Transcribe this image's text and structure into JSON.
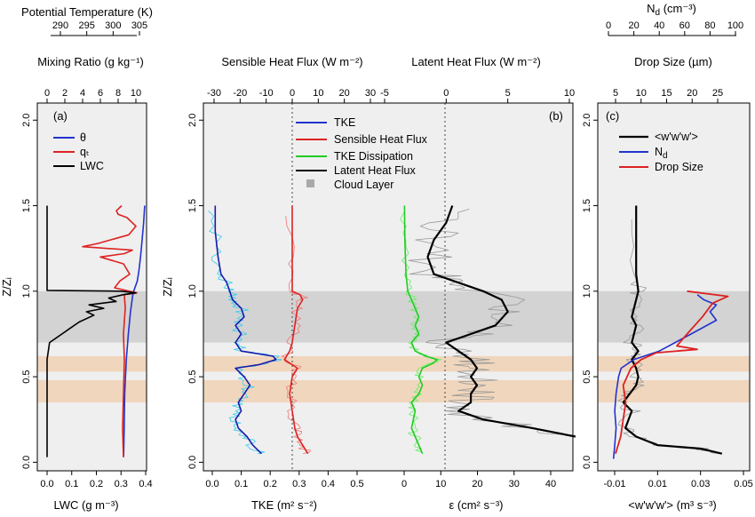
{
  "chart_data": [
    {
      "panel": "(a)",
      "type": "line",
      "top_axes": [
        {
          "title": "Potential Temperature (K)",
          "ticks": [
            "290",
            "295",
            "300",
            "305"
          ],
          "range": [
            289,
            306
          ]
        },
        {
          "title": "Mixing Ratio (g kg⁻¹)",
          "ticks": [
            "0",
            "2",
            "4",
            "6",
            "8",
            "10"
          ],
          "range": [
            0,
            11
          ]
        }
      ],
      "bottom_axis": {
        "title": "LWC (g m⁻³)",
        "ticks": [
          "0.0",
          "0.1",
          "0.2",
          "0.3",
          "0.4"
        ],
        "range": [
          -0.02,
          0.42
        ]
      },
      "y_axis": {
        "title": "Z/Zᵢ",
        "ticks": [
          "0.0",
          "0.5",
          "1.0",
          "1.5",
          "2.0"
        ],
        "range": [
          -0.05,
          2.1
        ]
      },
      "legend": {
        "position": "top-right",
        "entries": [
          "θ",
          "qₜ",
          "LWC"
        ]
      },
      "series": [
        {
          "name": "θ",
          "color": "#2233cc",
          "axis": "theta",
          "points": [
            [
              302.0,
              0.03
            ],
            [
              302.1,
              0.2
            ],
            [
              302.2,
              0.4
            ],
            [
              302.5,
              0.6
            ],
            [
              302.9,
              0.75
            ],
            [
              303.3,
              0.88
            ],
            [
              303.7,
              0.97
            ],
            [
              303.9,
              1.0
            ],
            [
              304.6,
              1.06
            ],
            [
              304.9,
              1.12
            ],
            [
              305.2,
              1.2
            ],
            [
              305.5,
              1.3
            ],
            [
              305.8,
              1.4
            ],
            [
              306.0,
              1.5
            ]
          ]
        },
        {
          "name": "qₜ",
          "color": "#dd2222",
          "axis": "q",
          "points": [
            [
              8.6,
              0.03
            ],
            [
              8.5,
              0.2
            ],
            [
              8.6,
              0.4
            ],
            [
              8.7,
              0.6
            ],
            [
              8.6,
              0.75
            ],
            [
              8.8,
              0.9
            ],
            [
              8.7,
              0.98
            ],
            [
              10.1,
              0.99
            ],
            [
              7.6,
              1.02
            ],
            [
              8.2,
              1.06
            ],
            [
              9.3,
              1.1
            ],
            [
              8.6,
              1.16
            ],
            [
              6.0,
              1.2
            ],
            [
              8.7,
              1.22
            ],
            [
              9.6,
              1.24
            ],
            [
              4.0,
              1.26
            ],
            [
              5.8,
              1.28
            ],
            [
              9.2,
              1.33
            ],
            [
              10.0,
              1.38
            ],
            [
              9.0,
              1.43
            ],
            [
              8.0,
              1.45
            ],
            [
              7.8,
              1.47
            ],
            [
              8.4,
              1.5
            ]
          ]
        },
        {
          "name": "LWC",
          "color": "#000000",
          "axis": "lwc",
          "points": [
            [
              0.0,
              0.03
            ],
            [
              0.0,
              0.6
            ],
            [
              0.01,
              0.7
            ],
            [
              0.06,
              0.75
            ],
            [
              0.09,
              0.78
            ],
            [
              0.13,
              0.82
            ],
            [
              0.19,
              0.86
            ],
            [
              0.16,
              0.88
            ],
            [
              0.23,
              0.9
            ],
            [
              0.17,
              0.92
            ],
            [
              0.28,
              0.94
            ],
            [
              0.25,
              0.96
            ],
            [
              0.31,
              0.98
            ],
            [
              0.36,
              0.99
            ],
            [
              0.3,
              1.0
            ],
            [
              0.0,
              1.005
            ],
            [
              0.0,
              1.5
            ]
          ]
        }
      ]
    },
    {
      "panel": "(b)",
      "type": "line",
      "top_axes": [
        {
          "title": "Sensible Heat Flux (W m⁻²)",
          "ticks": [
            "-30",
            "-20",
            "-10",
            "0",
            "10",
            "20",
            "30"
          ],
          "color": "#dd2222"
        },
        {
          "title": "Latent Heat Flux (W m⁻²)",
          "ticks": [
            "-5",
            "0",
            "5",
            "10"
          ]
        }
      ],
      "bottom_axes": [
        {
          "title": "TKE (m² s⁻²)",
          "ticks": [
            "0.0",
            "0.1",
            "0.2",
            "0.3",
            "0.4",
            "0.5"
          ],
          "color": "#2233cc"
        },
        {
          "title": "ε (cm² s⁻³)",
          "ticks": [
            "0",
            "10",
            "20",
            "30",
            "40"
          ],
          "color": "#22aa22"
        }
      ],
      "y_axis": {
        "title": "Z/Zᵢ",
        "ticks": [
          "0.0",
          "0.5",
          "1.0",
          "1.5",
          "2.0"
        ]
      },
      "legend": {
        "position": "top-center",
        "entries": [
          "TKE",
          "Sensible Heat Flux",
          "TKE Dissipation",
          "Latent Heat Flux",
          "Cloud Layer"
        ]
      },
      "series": [
        {
          "name": "TKE",
          "color": "#1a1aaa",
          "points": [
            [
              0.17,
              0.05
            ],
            [
              0.14,
              0.1
            ],
            [
              0.12,
              0.15
            ],
            [
              0.09,
              0.2
            ],
            [
              0.08,
              0.25
            ],
            [
              0.1,
              0.3
            ],
            [
              0.09,
              0.35
            ],
            [
              0.11,
              0.4
            ],
            [
              0.13,
              0.45
            ],
            [
              0.11,
              0.5
            ],
            [
              0.08,
              0.55
            ],
            [
              0.16,
              0.57
            ],
            [
              0.22,
              0.6
            ],
            [
              0.21,
              0.62
            ],
            [
              0.1,
              0.65
            ],
            [
              0.08,
              0.7
            ],
            [
              0.1,
              0.75
            ],
            [
              0.08,
              0.8
            ],
            [
              0.11,
              0.85
            ],
            [
              0.1,
              0.9
            ],
            [
              0.07,
              0.95
            ],
            [
              0.06,
              1.0
            ],
            [
              0.05,
              1.05
            ],
            [
              0.03,
              1.1
            ],
            [
              0.02,
              1.2
            ],
            [
              0.01,
              1.35
            ],
            [
              0.01,
              1.5
            ]
          ]
        },
        {
          "name": "Sensible Heat Flux",
          "color": "#dd2222",
          "points": [
            [
              6,
              0.05
            ],
            [
              4,
              0.1
            ],
            [
              2,
              0.15
            ],
            [
              1,
              0.2
            ],
            [
              0,
              0.3
            ],
            [
              -1,
              0.4
            ],
            [
              0,
              0.5
            ],
            [
              2,
              0.55
            ],
            [
              -3,
              0.6
            ],
            [
              -1,
              0.65
            ],
            [
              0,
              0.7
            ],
            [
              1,
              0.8
            ],
            [
              2,
              0.9
            ],
            [
              4,
              0.95
            ],
            [
              3,
              0.98
            ],
            [
              0,
              1.0
            ],
            [
              0,
              1.2
            ],
            [
              0,
              1.5
            ]
          ]
        },
        {
          "name": "TKE Dissipation",
          "color": "#22cc22",
          "points": [
            [
              5,
              0.05
            ],
            [
              4,
              0.1
            ],
            [
              3,
              0.15
            ],
            [
              2,
              0.2
            ],
            [
              3,
              0.3
            ],
            [
              2,
              0.35
            ],
            [
              4,
              0.4
            ],
            [
              5,
              0.45
            ],
            [
              4,
              0.5
            ],
            [
              5,
              0.55
            ],
            [
              8,
              0.58
            ],
            [
              9,
              0.6
            ],
            [
              6,
              0.62
            ],
            [
              3,
              0.65
            ],
            [
              2,
              0.7
            ],
            [
              4,
              0.75
            ],
            [
              3,
              0.8
            ],
            [
              4,
              0.85
            ],
            [
              3,
              0.9
            ],
            [
              2,
              0.95
            ],
            [
              1,
              1.0
            ],
            [
              0.5,
              1.1
            ],
            [
              0.2,
              1.3
            ],
            [
              0.1,
              1.5
            ]
          ]
        },
        {
          "name": "Latent Heat Flux",
          "color": "#000000",
          "points": [
            [
              10.5,
              0.15
            ],
            [
              7,
              0.2
            ],
            [
              3,
              0.25
            ],
            [
              1,
              0.3
            ],
            [
              2,
              0.35
            ],
            [
              2,
              0.4
            ],
            [
              2.5,
              0.45
            ],
            [
              2,
              0.5
            ],
            [
              2.5,
              0.55
            ],
            [
              2,
              0.6
            ],
            [
              1,
              0.65
            ],
            [
              0,
              0.7
            ],
            [
              2,
              0.75
            ],
            [
              4,
              0.8
            ],
            [
              5,
              0.88
            ],
            [
              4.5,
              0.95
            ],
            [
              3,
              1.0
            ],
            [
              1,
              1.05
            ],
            [
              -1,
              1.1
            ],
            [
              -1.5,
              1.2
            ],
            [
              -1,
              1.3
            ],
            [
              0,
              1.4
            ],
            [
              0.5,
              1.5
            ]
          ]
        }
      ]
    },
    {
      "panel": "(c)",
      "type": "line",
      "top_axes": [
        {
          "title": "N_d (cm⁻³)",
          "ticks": [
            "0",
            "20",
            "40",
            "60",
            "80",
            "100"
          ]
        },
        {
          "title": "Drop Size (µm)",
          "ticks": [
            "5",
            "10",
            "15",
            "20",
            "25"
          ]
        }
      ],
      "bottom_axis": {
        "title": "<w'w'w'> (m³ s⁻³)",
        "ticks": [
          "-0.01",
          "0.01",
          "0.03",
          "0.05"
        ]
      },
      "y_axis": {
        "ticks": [
          "0.0",
          "0.5",
          "1.0",
          "1.5",
          "2.0"
        ]
      },
      "legend": {
        "position": "top-left",
        "entries": [
          "<w'w'w'>",
          "N_d",
          "Drop Size"
        ]
      },
      "series": [
        {
          "name": "<w'w'w'>",
          "color": "#000000",
          "points": [
            [
              0.04,
              0.05
            ],
            [
              0.03,
              0.08
            ],
            [
              0.01,
              0.1
            ],
            [
              0.0,
              0.15
            ],
            [
              -0.005,
              0.2
            ],
            [
              -0.002,
              0.3
            ],
            [
              -0.006,
              0.35
            ],
            [
              -0.003,
              0.4
            ],
            [
              0.0,
              0.45
            ],
            [
              0.001,
              0.5
            ],
            [
              0.0,
              0.55
            ],
            [
              -0.002,
              0.6
            ],
            [
              0.001,
              0.65
            ],
            [
              -0.002,
              0.7
            ],
            [
              0.0,
              0.8
            ],
            [
              -0.002,
              0.85
            ],
            [
              0.0,
              0.95
            ],
            [
              0.001,
              1.0
            ],
            [
              0.0,
              1.1
            ],
            [
              0.0,
              1.5
            ]
          ]
        },
        {
          "name": "N_d",
          "color": "#2233cc",
          "points": [
            [
              4,
              0.02
            ],
            [
              5,
              0.1
            ],
            [
              6,
              0.2
            ],
            [
              5,
              0.3
            ],
            [
              6,
              0.4
            ],
            [
              8,
              0.5
            ],
            [
              10,
              0.55
            ],
            [
              20,
              0.6
            ],
            [
              40,
              0.65
            ],
            [
              65,
              0.75
            ],
            [
              85,
              0.83
            ],
            [
              80,
              0.88
            ],
            [
              85,
              0.92
            ],
            [
              75,
              0.95
            ],
            [
              70,
              0.98
            ]
          ]
        },
        {
          "name": "Drop Size",
          "color": "#dd2222",
          "points": [
            [
              5,
              0.05
            ],
            [
              6,
              0.15
            ],
            [
              6.5,
              0.25
            ],
            [
              7,
              0.35
            ],
            [
              6.5,
              0.45
            ],
            [
              8,
              0.55
            ],
            [
              10,
              0.6
            ],
            [
              13,
              0.64
            ],
            [
              21,
              0.66
            ],
            [
              17,
              0.68
            ],
            [
              19,
              0.75
            ],
            [
              22,
              0.85
            ],
            [
              24,
              0.93
            ],
            [
              27,
              0.97
            ],
            [
              19,
              1.0
            ]
          ]
        }
      ]
    }
  ],
  "shading": {
    "cloud_layer": [
      0.7,
      1.0
    ],
    "bands": [
      [
        0.35,
        0.48
      ],
      [
        0.53,
        0.62
      ]
    ],
    "cloud_color": "#d3d3d3",
    "band_color": "#f0d6bd",
    "background": "#efefef"
  }
}
